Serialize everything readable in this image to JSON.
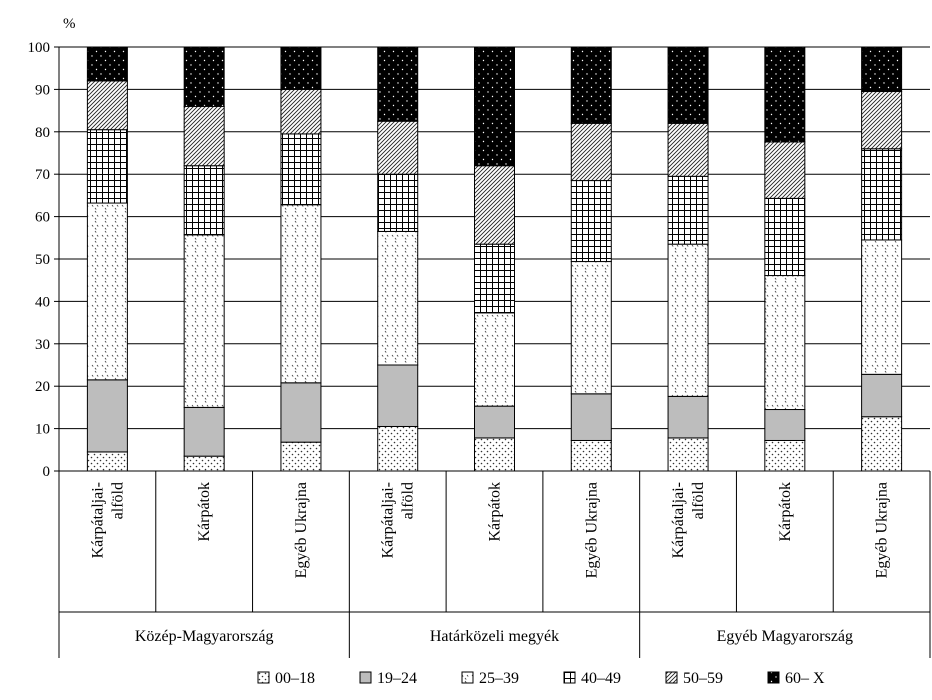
{
  "chart_data": {
    "type": "bar",
    "stacked": true,
    "ylabel": "%",
    "ylim": [
      0,
      100
    ],
    "yticks": [
      0,
      10,
      20,
      30,
      40,
      50,
      60,
      70,
      80,
      90,
      100
    ],
    "grid": true,
    "legend_position": "bottom",
    "groups": [
      {
        "label": "Közép-Magyarország",
        "categories": [
          "Kárpátaljai-alföld",
          "Kárpátok",
          "Egyéb Ukrajna"
        ]
      },
      {
        "label": "Határközeli megyék",
        "categories": [
          "Kárpátaljai-alföld",
          "Kárpátok",
          "Egyéb Ukrajna"
        ]
      },
      {
        "label": "Egyéb Magyarország",
        "categories": [
          "Kárpátaljai-alföld",
          "Kárpátok",
          "Egyéb Ukrajna"
        ]
      }
    ],
    "categories": [
      "Kárpátaljai-alföld",
      "Kárpátok",
      "Egyéb Ukrajna",
      "Kárpátaljai-alföld",
      "Kárpátok",
      "Egyéb Ukrajna",
      "Kárpátaljai-alföld",
      "Kárpátok",
      "Egyéb Ukrajna"
    ],
    "series": [
      {
        "name": "00–18",
        "pattern": "dots",
        "values": [
          4.5,
          3.5,
          6.8,
          10.5,
          7.8,
          7.2,
          7.8,
          7.2,
          12.8
        ]
      },
      {
        "name": "19–24",
        "pattern": "gray",
        "values": [
          17.0,
          11.5,
          14.0,
          14.5,
          7.5,
          11.0,
          9.8,
          7.3,
          10.0
        ]
      },
      {
        "name": "25–39",
        "pattern": "diamonds",
        "values": [
          41.7,
          40.7,
          42.0,
          31.5,
          22.0,
          31.2,
          35.9,
          31.6,
          31.7
        ]
      },
      {
        "name": "40–49",
        "pattern": "grid",
        "values": [
          17.3,
          16.3,
          16.7,
          13.5,
          16.2,
          19.1,
          16.0,
          18.2,
          21.5
        ]
      },
      {
        "name": "50–59",
        "pattern": "hatch",
        "values": [
          11.5,
          14.0,
          10.5,
          12.5,
          18.5,
          13.5,
          12.5,
          13.3,
          13.5
        ]
      },
      {
        "name": "60– X",
        "pattern": "black",
        "values": [
          8.0,
          14.0,
          10.0,
          17.5,
          28.0,
          18.0,
          18.0,
          22.4,
          10.5
        ]
      }
    ]
  }
}
